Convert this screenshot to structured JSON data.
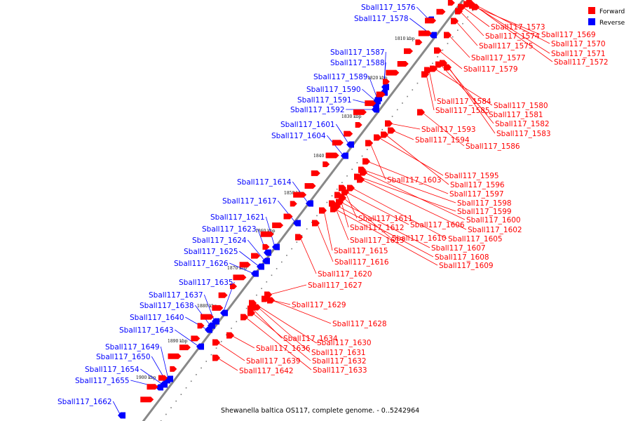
{
  "caption": "Shewanella baltica OS117, complete genome. - 0..5242964",
  "legend": [
    {
      "label": "Forward",
      "color": "#ff0000"
    },
    {
      "label": "Reverse",
      "color": "#0000ff"
    }
  ],
  "colors": {
    "forward": "#ff0000",
    "reverse": "#0000ff",
    "axis": "#888888",
    "leader_forward": "#ff0000",
    "leader_reverse": "#0000ff"
  },
  "ticks": [
    "1810 kbp",
    "1820 kbp",
    "1830 kbp",
    "1840 kbp",
    "1850 kbp",
    "1860 kbp",
    "1870 kbp",
    "1880 kbp",
    "1890 kbp",
    "1900 kbp"
  ],
  "forward_genes": [
    "Sball117_1573",
    "Sball117_1574",
    "Sball117_1569",
    "Sball117_1570",
    "Sball117_1575",
    "Sball117_1571",
    "Sball117_1577",
    "Sball117_1572",
    "Sball117_1579",
    "Sball117_1584",
    "Sball117_1580",
    "Sball117_1585",
    "Sball117_1581",
    "Sball117_1582",
    "Sball117_1593",
    "Sball117_1583",
    "Sball117_1594",
    "Sball117_1586",
    "Sball117_1595",
    "Sball117_1603",
    "Sball117_1596",
    "Sball117_1597",
    "Sball117_1598",
    "Sball117_1599",
    "Sball117_1611",
    "Sball117_1600",
    "Sball117_1612",
    "Sball117_1606",
    "Sball117_1602",
    "Sball117_1613",
    "Sball117_1610",
    "Sball117_1605",
    "Sball117_1607",
    "Sball117_1615",
    "Sball117_1608",
    "Sball117_1616",
    "Sball117_1609",
    "Sball117_1620",
    "Sball117_1627",
    "Sball117_1629",
    "Sball117_1628",
    "Sball117_1634",
    "Sball117_1630",
    "Sball117_1636",
    "Sball117_1631",
    "Sball117_1632",
    "Sball117_1639",
    "Sball117_1633",
    "Sball117_1642"
  ],
  "reverse_genes": [
    "Sball117_1576",
    "Sball117_1578",
    "Sball117_1587",
    "Sball117_1588",
    "Sball117_1589",
    "Sball117_1590",
    "Sball117_1591",
    "Sball117_1592",
    "Sball117_1601",
    "Sball117_1604",
    "Sball117_1614",
    "Sball117_1617",
    "Sball117_1621",
    "Sball117_1623",
    "Sball117_1624",
    "Sball117_1625",
    "Sball117_1626",
    "Sball117_1635",
    "Sball117_1637",
    "Sball117_1638",
    "Sball117_1640",
    "Sball117_1643",
    "Sball117_1649",
    "Sball117_1650",
    "Sball117_1654",
    "Sball117_1655",
    "Sball117_1662"
  ]
}
